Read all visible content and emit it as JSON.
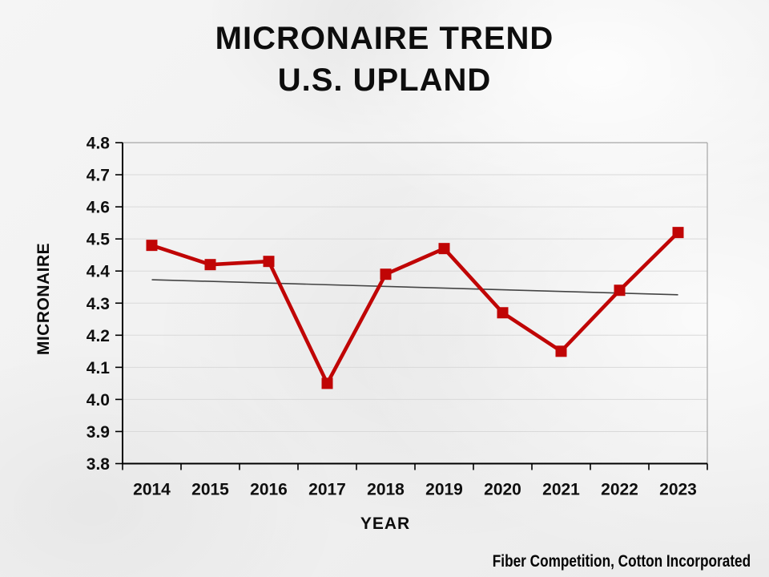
{
  "title": {
    "lines": [
      "MICRONAIRE TREND",
      "U.S. UPLAND"
    ]
  },
  "footer": {
    "text": "Fiber Competition, Cotton Incorporated"
  },
  "watermark": "faint cotton boll photo background",
  "colors": {
    "series_red": "#C00505",
    "trendline": "#444444",
    "gridline": "#d9d9d9",
    "plot_border": "#a6a6a6",
    "axis": "#000000",
    "text": "#0d0d0d"
  },
  "chart_data": {
    "type": "line",
    "title": "MICRONAIRE TREND U.S. UPLAND",
    "xlabel": "YEAR",
    "ylabel": "MICRONAIRE",
    "categories": [
      "2014",
      "2015",
      "2016",
      "2017",
      "2018",
      "2019",
      "2020",
      "2021",
      "2022",
      "2023"
    ],
    "series": [
      {
        "name": "Micronaire",
        "values": [
          4.48,
          4.42,
          4.43,
          4.05,
          4.39,
          4.47,
          4.27,
          4.15,
          4.34,
          4.52
        ],
        "color": "#C00505",
        "marker": "square"
      }
    ],
    "trendline": {
      "name": "linear-trendline",
      "start": 4.373,
      "end": 4.326,
      "color": "#444444"
    },
    "ylim": [
      3.8,
      4.8
    ],
    "yticks": [
      3.8,
      3.9,
      4.0,
      4.1,
      4.2,
      4.3,
      4.4,
      4.5,
      4.6,
      4.7,
      4.8
    ],
    "ytick_decimals": 1,
    "grid": true,
    "grid_orientation": "horizontal",
    "legend_position": "none"
  }
}
